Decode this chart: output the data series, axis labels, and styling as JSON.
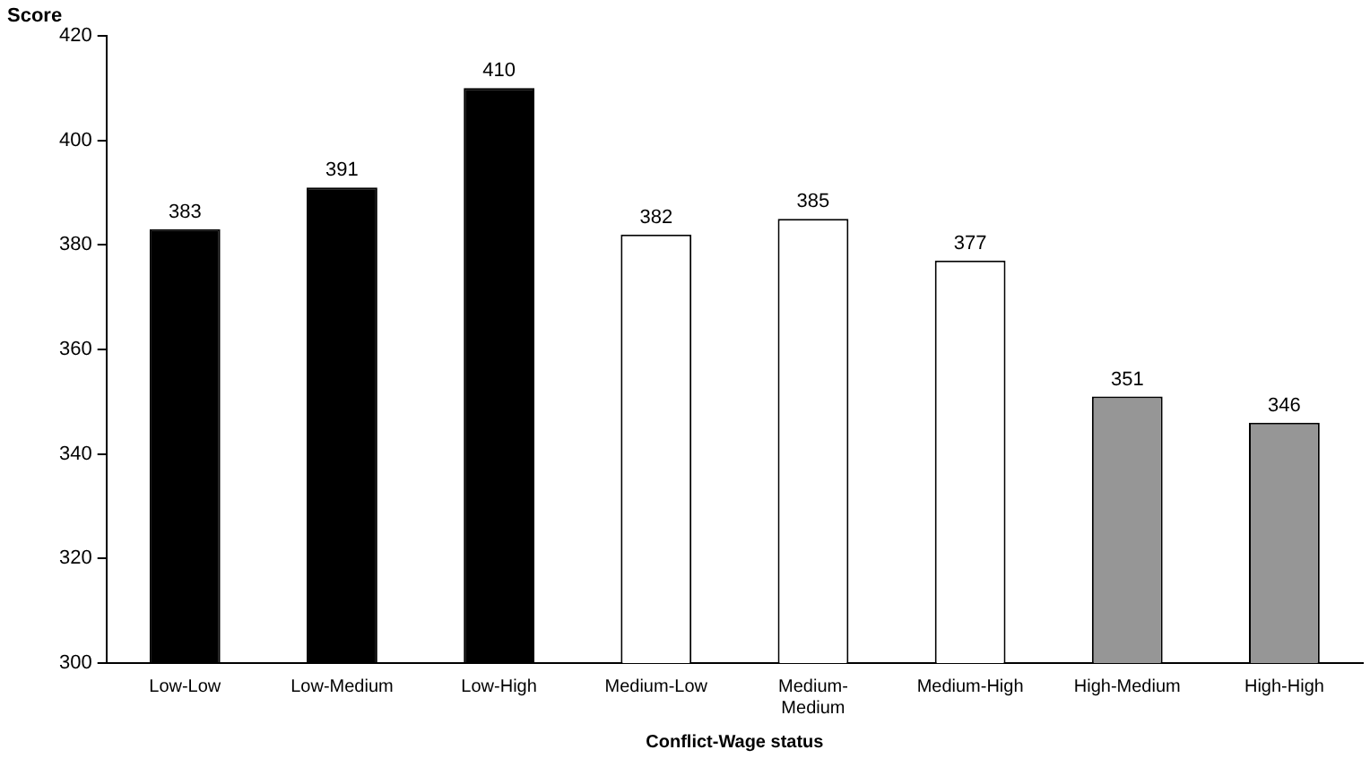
{
  "chart_data": {
    "type": "bar",
    "xlabel": "Conflict-Wage status",
    "ylabel": "Score",
    "categories": [
      "Low-Low",
      "Low-Medium",
      "Low-High",
      "Medium-Low",
      "Medium-Medium",
      "Medium-High",
      "High-Medium",
      "High-High"
    ],
    "values": [
      383,
      391,
      410,
      382,
      385,
      377,
      351,
      346
    ],
    "colors": [
      "#000000",
      "#000000",
      "#000000",
      "#ffffff",
      "#ffffff",
      "#ffffff",
      "#969696",
      "#969696"
    ],
    "ylim": [
      300,
      420
    ],
    "yticks": [
      300,
      320,
      340,
      360,
      380,
      400,
      420
    ],
    "grid": false,
    "legend": false,
    "data_labels": true
  }
}
